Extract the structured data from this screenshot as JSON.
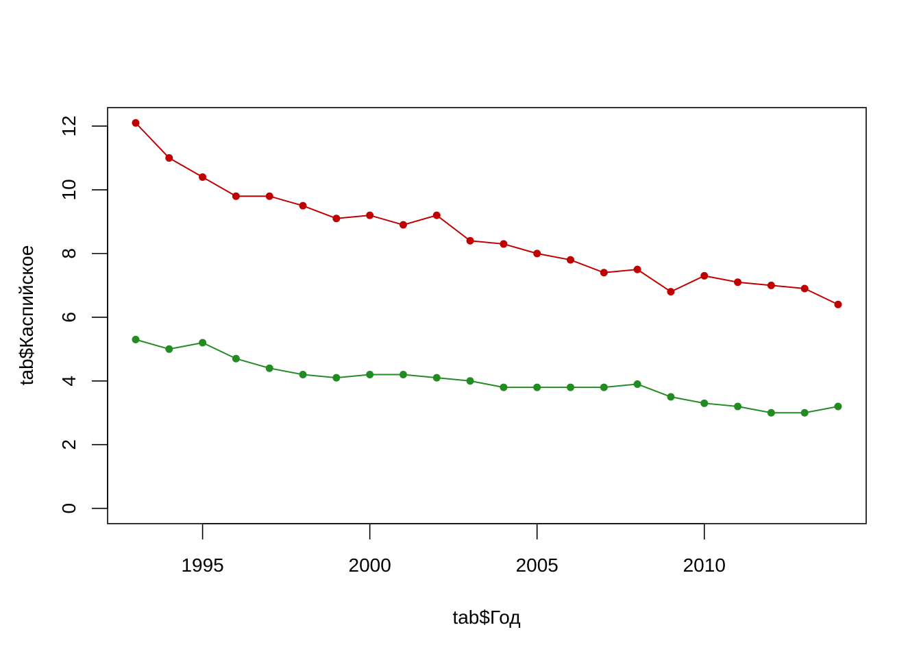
{
  "chart_data": {
    "type": "line",
    "xlabel": "tab$Год",
    "ylabel": "tab$Каспийское",
    "x": [
      1993,
      1994,
      1995,
      1996,
      1997,
      1998,
      1999,
      2000,
      2001,
      2002,
      2003,
      2004,
      2005,
      2006,
      2007,
      2008,
      2009,
      2010,
      2011,
      2012,
      2013,
      2014
    ],
    "xlim": [
      1992.16,
      2014.84
    ],
    "ylim": [
      -0.48,
      12.58
    ],
    "x_ticks": [
      "1995",
      "2000",
      "2005",
      "2010"
    ],
    "y_ticks": [
      "0",
      "2",
      "4",
      "6",
      "8",
      "10",
      "12"
    ],
    "grid": false,
    "series": [
      {
        "color": "#c00000",
        "values": [
          12.1,
          11.0,
          10.4,
          9.8,
          9.8,
          9.5,
          9.1,
          9.2,
          8.9,
          9.2,
          8.4,
          8.3,
          8.0,
          7.8,
          7.4,
          7.5,
          6.8,
          7.3,
          7.1,
          7.0,
          6.9,
          6.4
        ]
      },
      {
        "color": "#228b22",
        "values": [
          5.3,
          5.0,
          5.2,
          4.7,
          4.4,
          4.2,
          4.1,
          4.2,
          4.2,
          4.1,
          4.0,
          3.8,
          3.8,
          3.8,
          3.8,
          3.9,
          3.5,
          3.3,
          3.2,
          3.0,
          3.0,
          3.2
        ]
      }
    ]
  }
}
